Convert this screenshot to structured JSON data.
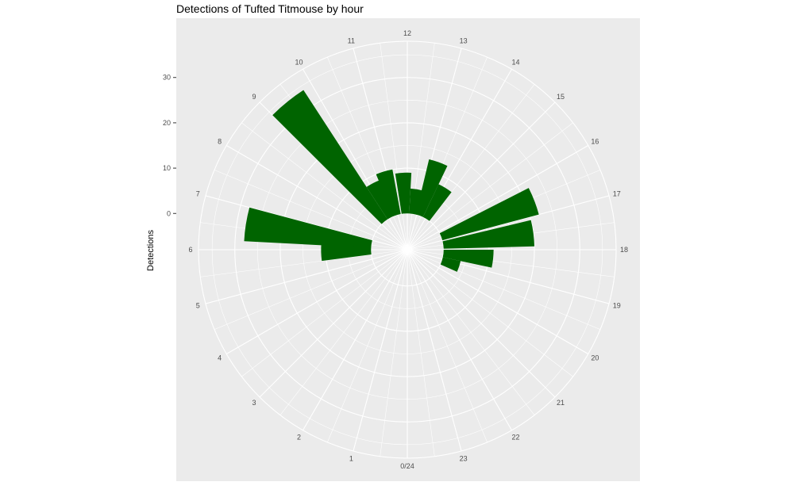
{
  "chart_data": {
    "type": "bar",
    "coord": "polar",
    "title": "Detections of Tufted Titmouse by hour",
    "xlabel": "",
    "ylabel": "Detections",
    "bar_color": "#006400",
    "panel_background": "#ebebeb",
    "grid_color": "#ffffff",
    "grid": true,
    "ylim": [
      -8,
      38
    ],
    "y_ticks": [
      0,
      10,
      20,
      30
    ],
    "hour_labels": [
      "0/24",
      "1",
      "2",
      "3",
      "4",
      "5",
      "6",
      "7",
      "8",
      "9",
      "10",
      "11",
      "12",
      "13",
      "14",
      "15",
      "16",
      "17",
      "18",
      "19",
      "20",
      "21",
      "22",
      "23"
    ],
    "bars": [
      {
        "hour": 5.9,
        "value": 11
      },
      {
        "hour": 6.6,
        "value": 28
      },
      {
        "hour": 9.4,
        "value": 34
      },
      {
        "hour": 10.2,
        "value": 8.5
      },
      {
        "hour": 10.9,
        "value": 10
      },
      {
        "hour": 11.8,
        "value": 9
      },
      {
        "hour": 12.6,
        "value": 5.5
      },
      {
        "hour": 13.3,
        "value": 12.5
      },
      {
        "hour": 14.1,
        "value": 8
      },
      {
        "hour": 16.6,
        "value": 22
      },
      {
        "hour": 17.5,
        "value": 20
      },
      {
        "hour": 18.4,
        "value": 11
      },
      {
        "hour": 19.2,
        "value": 4
      }
    ]
  }
}
